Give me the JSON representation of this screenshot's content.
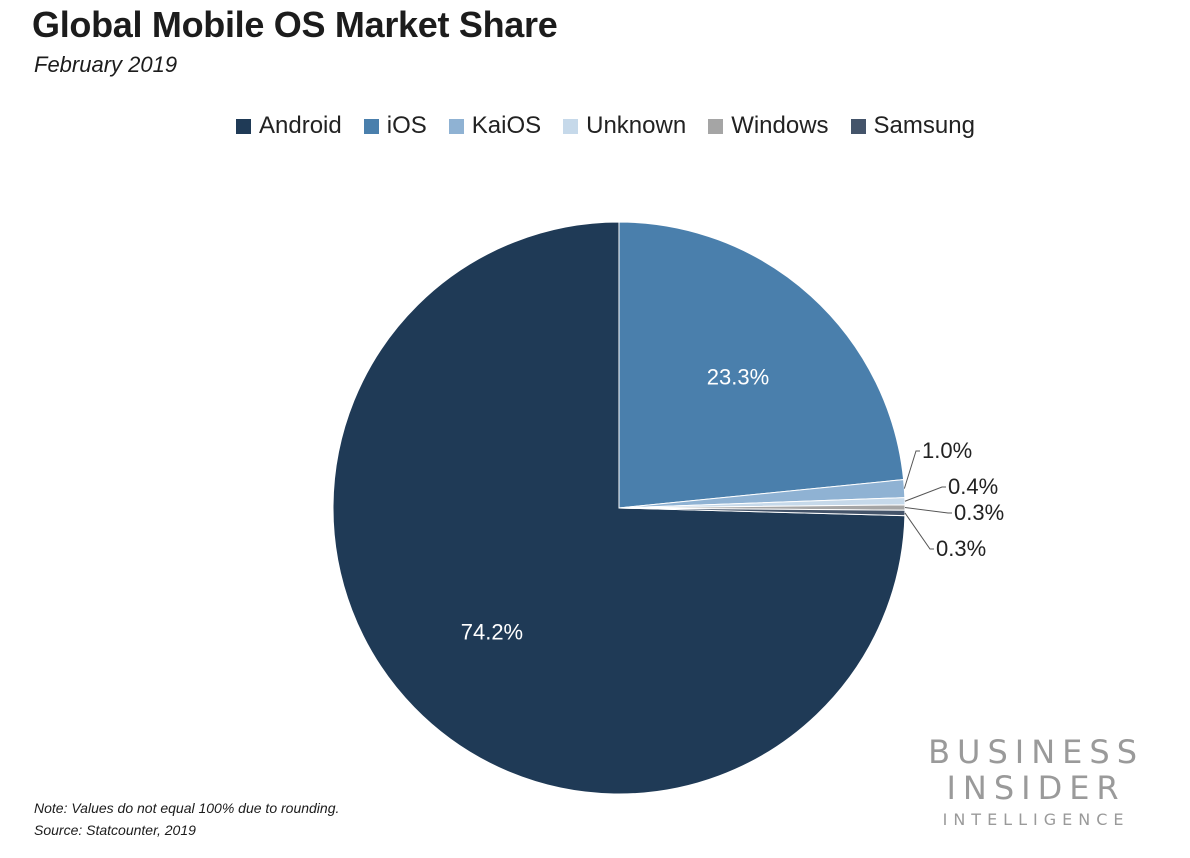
{
  "header": {
    "title": "Global Mobile OS Market Share",
    "subtitle": "February 2019"
  },
  "chart_data": {
    "type": "pie",
    "title": "Global Mobile OS Market Share",
    "subtitle": "February 2019",
    "legend_position": "top",
    "slices": [
      {
        "name": "Android",
        "value": 74.2,
        "label": "74.2%",
        "color": "#1f3a56"
      },
      {
        "name": "iOS",
        "value": 23.3,
        "label": "23.3%",
        "color": "#4a7fac"
      },
      {
        "name": "KaiOS",
        "value": 1.0,
        "label": "1.0%",
        "color": "#8fb2d3"
      },
      {
        "name": "Unknown",
        "value": 0.4,
        "label": "0.4%",
        "color": "#c6d9ea"
      },
      {
        "name": "Windows",
        "value": 0.3,
        "label": "0.3%",
        "color": "#a5a5a5"
      },
      {
        "name": "Samsung",
        "value": 0.3,
        "label": "0.3%",
        "color": "#44546a"
      }
    ]
  },
  "footer": {
    "note": "Note: Values do not equal 100% due to rounding.",
    "source": "Source: Statcounter, 2019"
  },
  "brand": {
    "line1": "BUSINESS",
    "line2": "INSIDER",
    "line3": "INTELLIGENCE"
  }
}
